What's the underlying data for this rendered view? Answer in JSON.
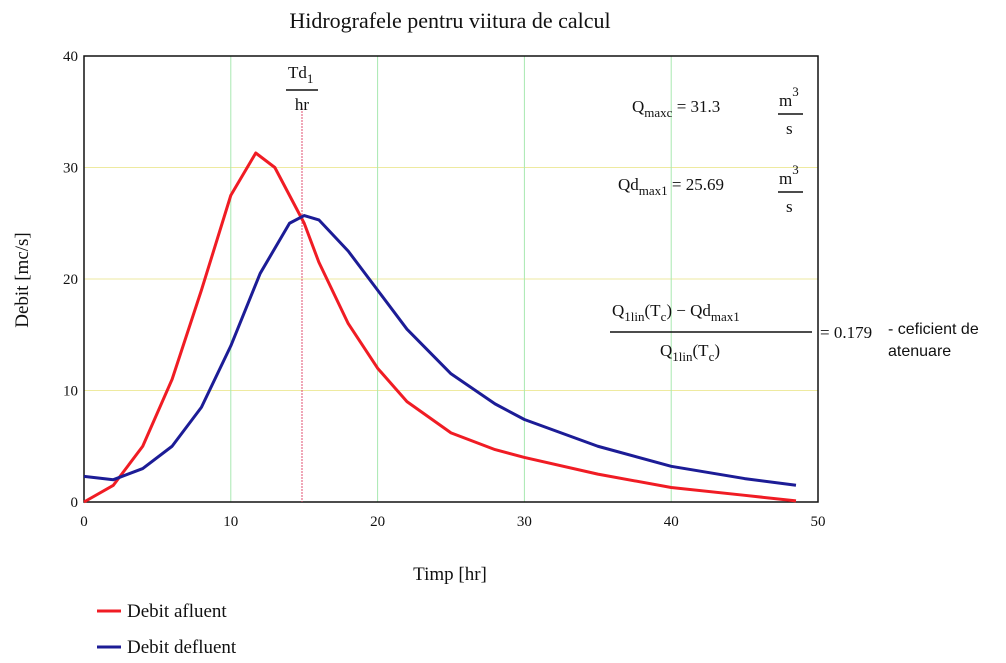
{
  "chart_data": {
    "type": "line",
    "title": "Hidrografele pentru viitura de calcul",
    "x_label": "Timp [hr]",
    "y_label": "Debit [mc/s]",
    "xlim": [
      0,
      50
    ],
    "ylim": [
      0,
      40
    ],
    "xticks": [
      0,
      10,
      20,
      30,
      40,
      50
    ],
    "yticks": [
      0,
      10,
      20,
      30,
      40
    ],
    "grid": true,
    "legend": "bottom-left",
    "series": [
      {
        "name": "Debit afluent",
        "color": "#f01c24",
        "x": [
          0,
          2,
          4,
          6,
          8,
          10,
          11.7,
          13,
          14,
          15,
          16,
          18,
          20,
          22,
          25,
          28,
          30,
          35,
          40,
          45,
          48.5
        ],
        "values": [
          0,
          1.5,
          5,
          11,
          19,
          27.5,
          31.3,
          30,
          27.5,
          25,
          21.5,
          16,
          12,
          9,
          6.2,
          4.7,
          4,
          2.5,
          1.3,
          0.6,
          0.1
        ]
      },
      {
        "name": "Debit defluent",
        "color": "#1c1c96",
        "x": [
          0,
          2,
          4,
          6,
          8,
          10,
          12,
          14,
          15,
          16,
          18,
          20,
          22,
          25,
          28,
          30,
          35,
          40,
          45,
          48.5
        ],
        "values": [
          2.3,
          2.0,
          3,
          5,
          8.5,
          14,
          20.5,
          25,
          25.69,
          25.3,
          22.5,
          19,
          15.5,
          11.5,
          8.8,
          7.4,
          5,
          3.2,
          2.1,
          1.5
        ]
      }
    ],
    "marker": {
      "x": 14.85,
      "color": "#e05070",
      "label_top": "Td",
      "label_sub": "1",
      "label_bottom": "hr"
    },
    "q_maxc": {
      "symbol": "Q",
      "sub": "maxc",
      "value": " = 31.3 ",
      "unit": "m",
      "exp": "3",
      "den": "s"
    },
    "qd_max1": {
      "symbol": "Qd",
      "sub": "max1",
      "value": " = 25.69 ",
      "unit": "m",
      "exp": "3",
      "den": "s"
    },
    "attenuation": {
      "numerator": [
        "Q",
        "1lin",
        "(T",
        "c",
        ") − Qd",
        "max1"
      ],
      "denominator": [
        "Q",
        "1lin",
        "(T",
        "c",
        ")"
      ],
      "value": "= 0.179",
      "note_line1": "- ceficient de",
      "note_line2": "atenuare"
    }
  }
}
